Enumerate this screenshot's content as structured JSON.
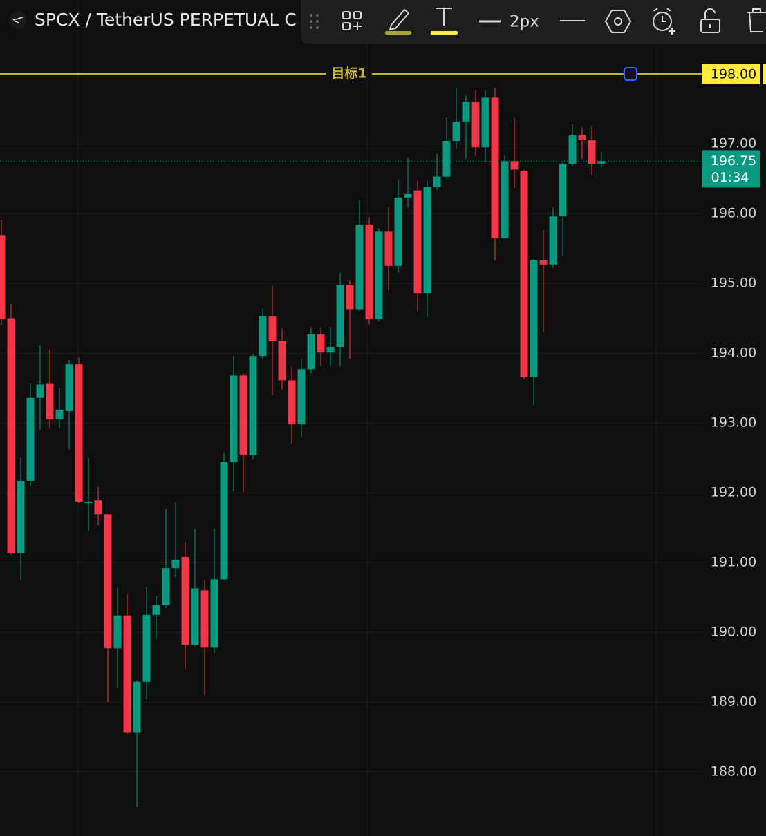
{
  "chart_data": {
    "type": "candlestick",
    "title": "SPCX / TetherUS PERPETUAL C",
    "toolbar": {
      "line_width": "2px"
    },
    "up_color": "#089981",
    "down_color": "#f23645",
    "ylim": [
      187.08,
      199.06
    ],
    "yticks": [
      {
        "value": 188,
        "label": "188.00"
      },
      {
        "value": 189,
        "label": "189.00"
      },
      {
        "value": 190,
        "label": "190.00"
      },
      {
        "value": 191,
        "label": "191.00"
      },
      {
        "value": 192,
        "label": "192.00"
      },
      {
        "value": 193,
        "label": "193.00"
      },
      {
        "value": 194,
        "label": "194.00"
      },
      {
        "value": 195,
        "label": "195.00"
      },
      {
        "value": 196,
        "label": "196.00"
      },
      {
        "value": 197,
        "label": "197.00"
      }
    ],
    "grid": true,
    "target_line": {
      "label": "目标1",
      "value": 198,
      "value_label": "198.00",
      "color": "#c9b43a"
    },
    "last_price": {
      "value": 196.75,
      "value_label": "196.75",
      "countdown": "01:34"
    },
    "open": [
      195.69,
      194.5,
      191.14,
      192.17,
      193.36,
      193.56,
      193.05,
      193.17,
      193.84,
      191.87,
      191.89,
      191.69,
      189.77,
      190.24,
      188.56,
      189.29,
      190.25,
      190.39,
      190.92,
      191.08,
      189.82,
      190.6,
      189.78,
      190.76,
      192.44,
      193.68,
      192.54,
      193.96,
      194.53,
      194.17,
      193.61,
      192.98,
      193.77,
      194.27,
      194.01,
      194.09,
      194.98,
      194.63,
      195.84,
      194.49,
      195.74,
      195.25,
      196.23,
      196.33,
      194.86,
      196.38,
      196.53,
      197.04,
      197.32,
      197.6,
      196.95,
      197.66,
      195.65,
      196.75,
      196.61,
      193.66,
      195.33,
      195.27,
      195.96,
      196.71,
      197.12,
      197.05,
      196.71
    ],
    "high": [
      195.91,
      194.7,
      192.5,
      193.57,
      194.11,
      194.06,
      193.5,
      193.9,
      193.94,
      192.5,
      192.08,
      191.69,
      190.64,
      190.55,
      189.31,
      190.65,
      190.52,
      191.78,
      191.86,
      191.29,
      191.49,
      190.74,
      191.49,
      192.57,
      193.96,
      193.71,
      193.99,
      194.63,
      194.97,
      194.36,
      193.81,
      193.91,
      194.36,
      194.36,
      194.37,
      195.15,
      195.05,
      196.19,
      195.94,
      195.79,
      196.09,
      196.49,
      196.8,
      196.47,
      196.47,
      196.86,
      197.38,
      197.79,
      197.69,
      197.77,
      197.77,
      197.8,
      196.83,
      197.37,
      196.63,
      195.35,
      195.76,
      196.09,
      196.75,
      197.28,
      197.23,
      197.25,
      196.88
    ],
    "low": [
      194.4,
      191.1,
      190.74,
      192.1,
      192.9,
      192.92,
      192.92,
      192.62,
      191.85,
      191.45,
      191.53,
      189.0,
      189.2,
      188.54,
      187.5,
      189.04,
      189.9,
      190.35,
      190.79,
      189.48,
      189.8,
      189.09,
      189.7,
      190.74,
      192.02,
      192.01,
      192.48,
      193.91,
      193.4,
      193.47,
      192.7,
      192.8,
      193.71,
      193.81,
      193.81,
      193.81,
      193.91,
      194.6,
      194.41,
      194.46,
      194.9,
      195.15,
      196.09,
      194.6,
      194.52,
      196.34,
      196.5,
      196.93,
      196.78,
      196.83,
      196.73,
      195.33,
      195.64,
      196.37,
      193.63,
      193.25,
      194.31,
      195.22,
      195.4,
      196.68,
      196.78,
      196.55,
      196.66
    ],
    "close": [
      194.49,
      191.14,
      192.17,
      193.36,
      193.55,
      193.05,
      193.19,
      193.84,
      191.87,
      191.87,
      191.69,
      189.77,
      190.24,
      188.56,
      189.29,
      190.25,
      190.39,
      190.92,
      191.04,
      189.82,
      190.63,
      189.78,
      190.76,
      192.44,
      193.68,
      192.54,
      193.96,
      194.53,
      194.17,
      193.61,
      192.98,
      193.77,
      194.27,
      194.01,
      194.09,
      194.98,
      194.63,
      195.84,
      194.49,
      195.74,
      195.25,
      196.23,
      196.28,
      194.86,
      196.38,
      196.53,
      197.04,
      197.32,
      197.6,
      196.95,
      197.66,
      195.65,
      196.75,
      196.63,
      193.66,
      195.33,
      195.27,
      195.96,
      196.71,
      197.12,
      197.05,
      196.71,
      196.75
    ]
  }
}
